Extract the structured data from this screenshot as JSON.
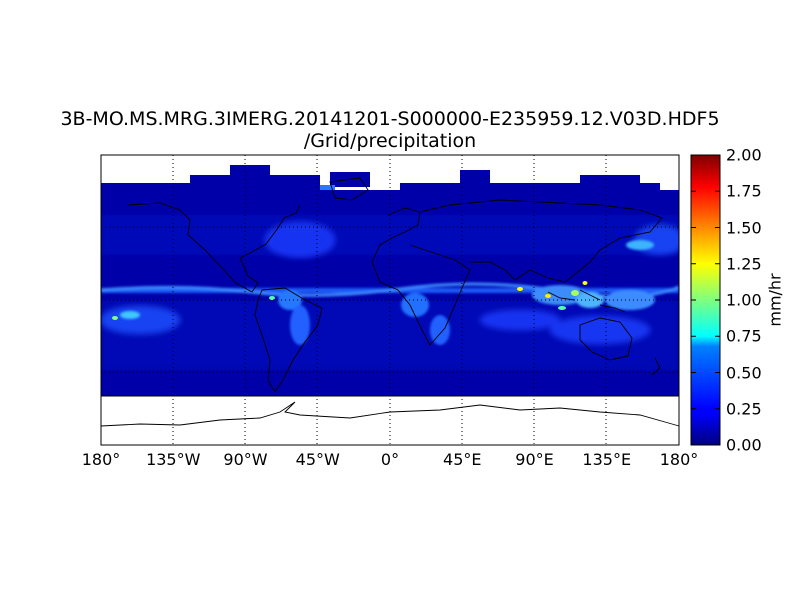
{
  "title": {
    "line1": "3B-MO.MS.MRG.3IMERG.20141201-S000000-E235959.12.V03D.HDF5",
    "line2": "/Grid/precipitation"
  },
  "map": {
    "projection": "equirectangular",
    "lon_range": [
      -180,
      180
    ],
    "lat_range": [
      -90,
      90
    ],
    "data_lat_range": [
      -60,
      90
    ],
    "grid_lines": true,
    "x_ticks": [
      {
        "lon": -180,
        "label": "180°"
      },
      {
        "lon": -135,
        "label": "135°W"
      },
      {
        "lon": -90,
        "label": "90°W"
      },
      {
        "lon": -45,
        "label": "45°W"
      },
      {
        "lon": 0,
        "label": "0°"
      },
      {
        "lon": 45,
        "label": "45°E"
      },
      {
        "lon": 90,
        "label": "90°E"
      },
      {
        "lon": 135,
        "label": "135°E"
      },
      {
        "lon": 180,
        "label": "180°"
      }
    ]
  },
  "colorbar": {
    "label": "mm/hr",
    "min": 0.0,
    "max": 2.0,
    "colormap": "jet",
    "ticks": [
      "0.00",
      "0.25",
      "0.50",
      "0.75",
      "1.00",
      "1.25",
      "1.50",
      "1.75",
      "2.00"
    ]
  }
}
